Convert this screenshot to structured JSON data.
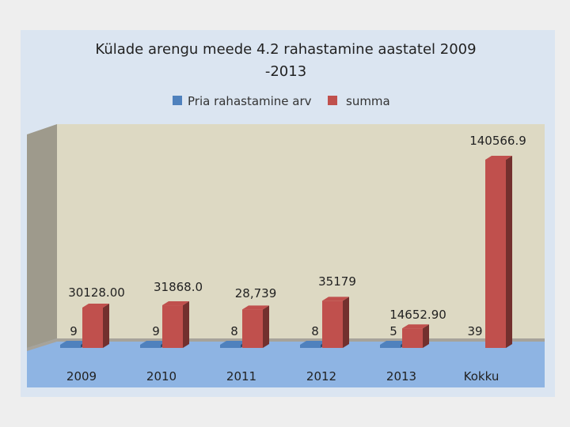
{
  "chart_data": {
    "type": "bar",
    "title": "Külade arengu meede 4.2 rahastamine aastatel 2009",
    "title_line2": "-2013",
    "categories": [
      "2009",
      "2010",
      "2011",
      "2012",
      "2013",
      "Kokku"
    ],
    "series": [
      {
        "name": "Pria rahastamine arv",
        "values": [
          9,
          9,
          8,
          8,
          5,
          39
        ],
        "labels": [
          "9",
          "9",
          "8",
          "8",
          "5",
          "39"
        ],
        "color": "#4f81bd"
      },
      {
        "name": "summa",
        "values": [
          30128.0,
          31868.0,
          28739,
          35179,
          14652.9,
          140566.9
        ],
        "labels": [
          "30128.00",
          "31868.0",
          "28,739",
          "35179",
          "14652.90",
          "140566.9"
        ],
        "color": "#c0504d"
      }
    ],
    "ylim": [
      0,
      140566.9
    ],
    "grid": false,
    "legend": "top",
    "style": "3d",
    "colors": {
      "plot_wall": "#ddd9c3",
      "side_wall": "#9e9a8c",
      "floor": "#8eb4e3",
      "background": "#dbe5f1"
    }
  }
}
